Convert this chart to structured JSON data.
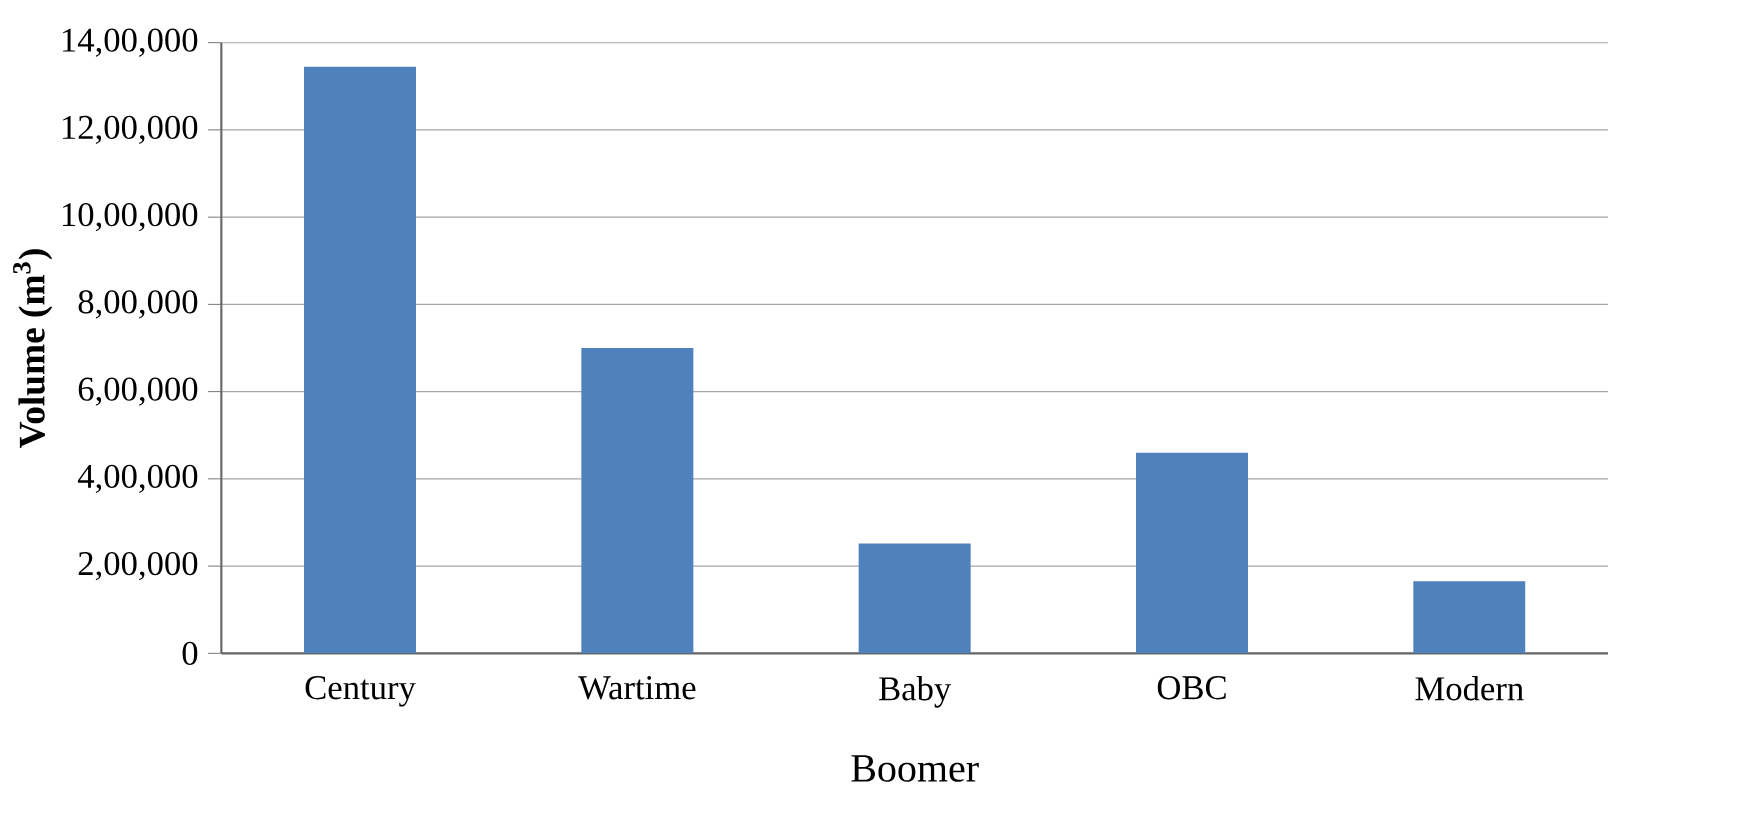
{
  "chart_data": {
    "type": "bar",
    "xlabel": "Boomer",
    "ylabel": "Volume (m$^{3}$)",
    "categories": [
      "Century",
      "Wartime",
      "Baby",
      "OBC",
      "Modern"
    ],
    "values": [
      1345000,
      700000,
      252000,
      460000,
      165000
    ],
    "color": "#4f81bd",
    "ylim": [
      0,
      1400000
    ],
    "yticks": [
      {
        "value": 0,
        "label": "0"
      },
      {
        "value": 200000,
        "label": "2,00,000"
      },
      {
        "value": 400000,
        "label": "4,00,000"
      },
      {
        "value": 600000,
        "label": "6,00,000"
      },
      {
        "value": 800000,
        "label": "8,00,000"
      },
      {
        "value": 1000000,
        "label": "10,00,000"
      },
      {
        "value": 1200000,
        "label": "12,00,000"
      },
      {
        "value": 1400000,
        "label": "14,00,000"
      }
    ],
    "grid": "y"
  }
}
